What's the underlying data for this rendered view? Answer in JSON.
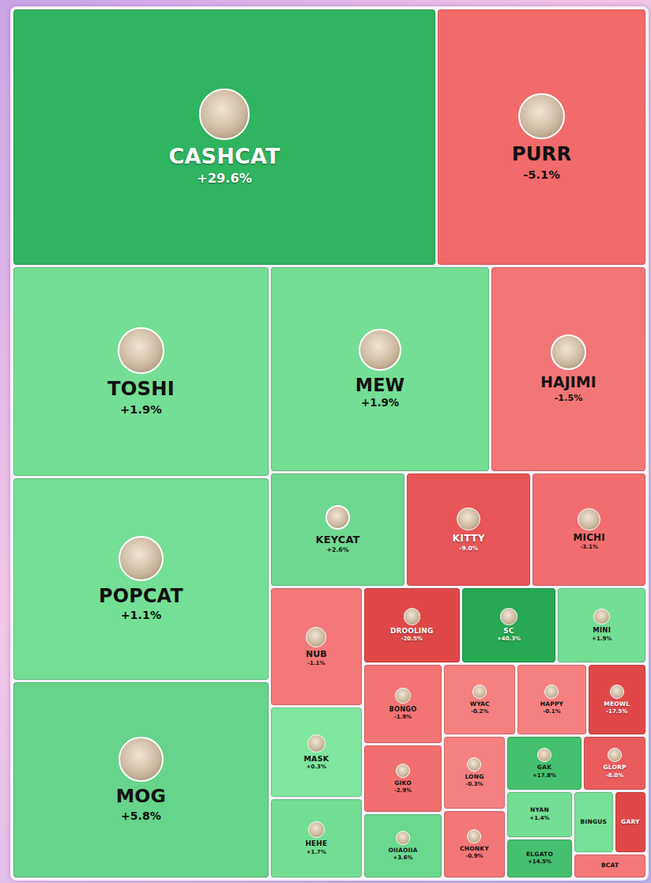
{
  "chart_data": {
    "type": "treemap",
    "categories": [
      "CASHCAT",
      "PURR",
      "TOSHI",
      "MEW",
      "HAJIMI",
      "POPCAT",
      "MOG",
      "KEYCAT",
      "KITTY",
      "MICHI",
      "NUB",
      "DROOLING",
      "SC",
      "MINI",
      "MASK",
      "BONGO",
      "WYAC",
      "HAPPY",
      "MEOWL",
      "GIKO",
      "LONG",
      "GAK",
      "GLORP",
      "HEHE",
      "OIIAOIIA",
      "CHONKY",
      "NYAN",
      "BINGUS",
      "GARY",
      "ELGATO",
      "BCAT"
    ],
    "values": [
      29.6,
      -5.1,
      1.9,
      1.9,
      -1.5,
      1.1,
      5.8,
      2.6,
      -9.0,
      -3.1,
      -1.1,
      -20.5,
      40.3,
      1.9,
      0.3,
      -1.9,
      -0.2,
      -0.1,
      -17.5,
      -2.9,
      -0.3,
      17.8,
      -8.0,
      1.7,
      3.6,
      -0.9,
      1.4,
      null,
      null,
      14.5,
      null
    ],
    "value_labels": [
      "+29.6%",
      "-5.1%",
      "+1.9%",
      "+1.9%",
      "-1.5%",
      "+1.1%",
      "+5.8%",
      "+2.6%",
      "-9.0%",
      "-3.1%",
      "-1.1%",
      "-20.5%",
      "+40.3%",
      "+1.9%",
      "+0.3%",
      "-1.9%",
      "-0.2%",
      "-0.1%",
      "-17.5%",
      "-2.9%",
      "-0.3%",
      "+17.8%",
      "-8.0%",
      "+1.7%",
      "+3.6%",
      "-0.9%",
      "+1.4%",
      null,
      null,
      "+14.5%",
      null
    ],
    "sizes": [
      173.7,
      85.5,
      86.5,
      72.3,
      51.0,
      83.3,
      81.0,
      24.8,
      22.9,
      20.9,
      17.7,
      11.9,
      11.7,
      10.9,
      13.5,
      10.4,
      8.6,
      8.2,
      6.9,
      8.7,
      7.5,
      6.9,
      5.7,
      11.8,
      8.4,
      7.0,
      5.3,
      4.3,
      3.4,
      4.5,
      3.0
    ],
    "colors": [
      "#2fb45f",
      "#f26a6a",
      "#74de95",
      "#74de95",
      "#f27676",
      "#75df96",
      "#66d48a",
      "#6fd890",
      "#e85557",
      "#f26e6e",
      "#f47878",
      "#e04848",
      "#27a853",
      "#74de95",
      "#80e6a0",
      "#f47474",
      "#f58080",
      "#f58080",
      "#e04848",
      "#f26f6f",
      "#f58080",
      "#45c06e",
      "#ea5c5c",
      "#74de95",
      "#6ad88e",
      "#f47777",
      "#74de95",
      "#78e098",
      "#e04848",
      "#45c06e",
      "#f47878"
    ]
  }
}
